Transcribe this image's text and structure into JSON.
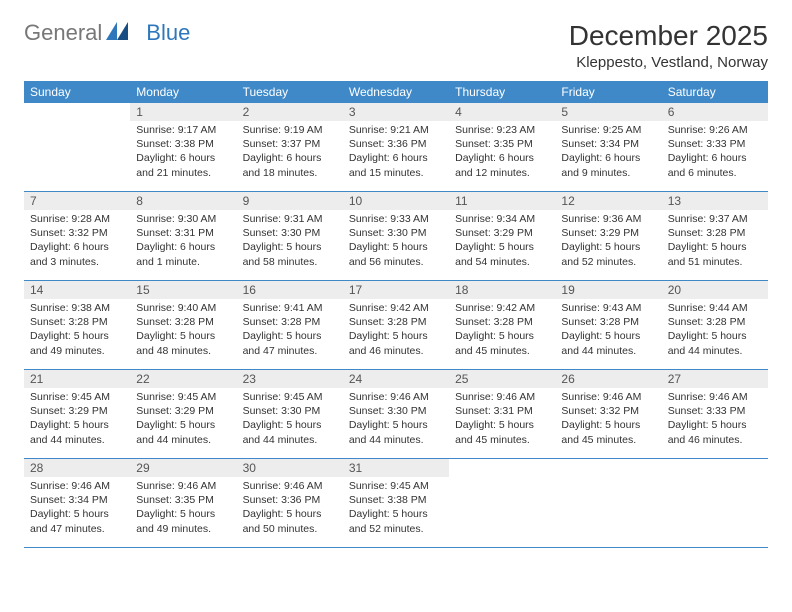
{
  "logo": {
    "text1": "General",
    "text2": "Blue"
  },
  "title": "December 2025",
  "location": "Kleppesto, Vestland, Norway",
  "colors": {
    "header_bg": "#3f89c8",
    "header_fg": "#ffffff",
    "daynum_bg": "#ededed",
    "row_border": "#3f89c8",
    "logo_blue": "#2f77bb",
    "logo_gray": "#777777",
    "text": "#333333",
    "background": "#ffffff"
  },
  "weekdays": [
    "Sunday",
    "Monday",
    "Tuesday",
    "Wednesday",
    "Thursday",
    "Friday",
    "Saturday"
  ],
  "cells": [
    {
      "n": "",
      "l1": "",
      "l2": "",
      "l3": "",
      "l4": "",
      "empty": true
    },
    {
      "n": "1",
      "l1": "Sunrise: 9:17 AM",
      "l2": "Sunset: 3:38 PM",
      "l3": "Daylight: 6 hours",
      "l4": "and 21 minutes."
    },
    {
      "n": "2",
      "l1": "Sunrise: 9:19 AM",
      "l2": "Sunset: 3:37 PM",
      "l3": "Daylight: 6 hours",
      "l4": "and 18 minutes."
    },
    {
      "n": "3",
      "l1": "Sunrise: 9:21 AM",
      "l2": "Sunset: 3:36 PM",
      "l3": "Daylight: 6 hours",
      "l4": "and 15 minutes."
    },
    {
      "n": "4",
      "l1": "Sunrise: 9:23 AM",
      "l2": "Sunset: 3:35 PM",
      "l3": "Daylight: 6 hours",
      "l4": "and 12 minutes."
    },
    {
      "n": "5",
      "l1": "Sunrise: 9:25 AM",
      "l2": "Sunset: 3:34 PM",
      "l3": "Daylight: 6 hours",
      "l4": "and 9 minutes."
    },
    {
      "n": "6",
      "l1": "Sunrise: 9:26 AM",
      "l2": "Sunset: 3:33 PM",
      "l3": "Daylight: 6 hours",
      "l4": "and 6 minutes."
    },
    {
      "n": "7",
      "l1": "Sunrise: 9:28 AM",
      "l2": "Sunset: 3:32 PM",
      "l3": "Daylight: 6 hours",
      "l4": "and 3 minutes."
    },
    {
      "n": "8",
      "l1": "Sunrise: 9:30 AM",
      "l2": "Sunset: 3:31 PM",
      "l3": "Daylight: 6 hours",
      "l4": "and 1 minute."
    },
    {
      "n": "9",
      "l1": "Sunrise: 9:31 AM",
      "l2": "Sunset: 3:30 PM",
      "l3": "Daylight: 5 hours",
      "l4": "and 58 minutes."
    },
    {
      "n": "10",
      "l1": "Sunrise: 9:33 AM",
      "l2": "Sunset: 3:30 PM",
      "l3": "Daylight: 5 hours",
      "l4": "and 56 minutes."
    },
    {
      "n": "11",
      "l1": "Sunrise: 9:34 AM",
      "l2": "Sunset: 3:29 PM",
      "l3": "Daylight: 5 hours",
      "l4": "and 54 minutes."
    },
    {
      "n": "12",
      "l1": "Sunrise: 9:36 AM",
      "l2": "Sunset: 3:29 PM",
      "l3": "Daylight: 5 hours",
      "l4": "and 52 minutes."
    },
    {
      "n": "13",
      "l1": "Sunrise: 9:37 AM",
      "l2": "Sunset: 3:28 PM",
      "l3": "Daylight: 5 hours",
      "l4": "and 51 minutes."
    },
    {
      "n": "14",
      "l1": "Sunrise: 9:38 AM",
      "l2": "Sunset: 3:28 PM",
      "l3": "Daylight: 5 hours",
      "l4": "and 49 minutes."
    },
    {
      "n": "15",
      "l1": "Sunrise: 9:40 AM",
      "l2": "Sunset: 3:28 PM",
      "l3": "Daylight: 5 hours",
      "l4": "and 48 minutes."
    },
    {
      "n": "16",
      "l1": "Sunrise: 9:41 AM",
      "l2": "Sunset: 3:28 PM",
      "l3": "Daylight: 5 hours",
      "l4": "and 47 minutes."
    },
    {
      "n": "17",
      "l1": "Sunrise: 9:42 AM",
      "l2": "Sunset: 3:28 PM",
      "l3": "Daylight: 5 hours",
      "l4": "and 46 minutes."
    },
    {
      "n": "18",
      "l1": "Sunrise: 9:42 AM",
      "l2": "Sunset: 3:28 PM",
      "l3": "Daylight: 5 hours",
      "l4": "and 45 minutes."
    },
    {
      "n": "19",
      "l1": "Sunrise: 9:43 AM",
      "l2": "Sunset: 3:28 PM",
      "l3": "Daylight: 5 hours",
      "l4": "and 44 minutes."
    },
    {
      "n": "20",
      "l1": "Sunrise: 9:44 AM",
      "l2": "Sunset: 3:28 PM",
      "l3": "Daylight: 5 hours",
      "l4": "and 44 minutes."
    },
    {
      "n": "21",
      "l1": "Sunrise: 9:45 AM",
      "l2": "Sunset: 3:29 PM",
      "l3": "Daylight: 5 hours",
      "l4": "and 44 minutes."
    },
    {
      "n": "22",
      "l1": "Sunrise: 9:45 AM",
      "l2": "Sunset: 3:29 PM",
      "l3": "Daylight: 5 hours",
      "l4": "and 44 minutes."
    },
    {
      "n": "23",
      "l1": "Sunrise: 9:45 AM",
      "l2": "Sunset: 3:30 PM",
      "l3": "Daylight: 5 hours",
      "l4": "and 44 minutes."
    },
    {
      "n": "24",
      "l1": "Sunrise: 9:46 AM",
      "l2": "Sunset: 3:30 PM",
      "l3": "Daylight: 5 hours",
      "l4": "and 44 minutes."
    },
    {
      "n": "25",
      "l1": "Sunrise: 9:46 AM",
      "l2": "Sunset: 3:31 PM",
      "l3": "Daylight: 5 hours",
      "l4": "and 45 minutes."
    },
    {
      "n": "26",
      "l1": "Sunrise: 9:46 AM",
      "l2": "Sunset: 3:32 PM",
      "l3": "Daylight: 5 hours",
      "l4": "and 45 minutes."
    },
    {
      "n": "27",
      "l1": "Sunrise: 9:46 AM",
      "l2": "Sunset: 3:33 PM",
      "l3": "Daylight: 5 hours",
      "l4": "and 46 minutes."
    },
    {
      "n": "28",
      "l1": "Sunrise: 9:46 AM",
      "l2": "Sunset: 3:34 PM",
      "l3": "Daylight: 5 hours",
      "l4": "and 47 minutes."
    },
    {
      "n": "29",
      "l1": "Sunrise: 9:46 AM",
      "l2": "Sunset: 3:35 PM",
      "l3": "Daylight: 5 hours",
      "l4": "and 49 minutes."
    },
    {
      "n": "30",
      "l1": "Sunrise: 9:46 AM",
      "l2": "Sunset: 3:36 PM",
      "l3": "Daylight: 5 hours",
      "l4": "and 50 minutes."
    },
    {
      "n": "31",
      "l1": "Sunrise: 9:45 AM",
      "l2": "Sunset: 3:38 PM",
      "l3": "Daylight: 5 hours",
      "l4": "and 52 minutes."
    },
    {
      "n": "",
      "l1": "",
      "l2": "",
      "l3": "",
      "l4": "",
      "blank": true
    },
    {
      "n": "",
      "l1": "",
      "l2": "",
      "l3": "",
      "l4": "",
      "blank": true
    },
    {
      "n": "",
      "l1": "",
      "l2": "",
      "l3": "",
      "l4": "",
      "blank": true
    }
  ]
}
